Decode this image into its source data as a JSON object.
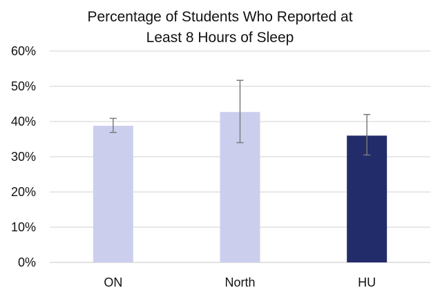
{
  "chart_data": {
    "type": "bar",
    "title_lines": [
      "Percentage of Students Who Reported at",
      "Least 8 Hours of Sleep"
    ],
    "categories": [
      "ON",
      "North",
      "HU"
    ],
    "values": [
      38.8,
      42.7,
      36.0
    ],
    "error_low": [
      36.9,
      34.0,
      30.5
    ],
    "error_high": [
      40.9,
      51.7,
      42.0
    ],
    "bar_colors": [
      "#cbcfed",
      "#cbcfed",
      "#232c6b"
    ],
    "error_bar_color": "#7a7a7a",
    "gridline_color": "#d9d9d9",
    "ylim": [
      0,
      60
    ],
    "yticks": [
      0,
      10,
      20,
      30,
      40,
      50,
      60
    ],
    "ytick_labels": [
      "0%",
      "10%",
      "20%",
      "30%",
      "40%",
      "50%",
      "60%"
    ],
    "xlabel": "",
    "ylabel": "",
    "grid": true
  }
}
